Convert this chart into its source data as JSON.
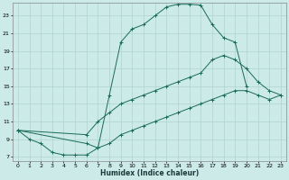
{
  "xlabel": "Humidex (Indice chaleur)",
  "bg_color": "#cceae8",
  "grid_color": "#b0d4d0",
  "line_color": "#1a6b5a",
  "xlim": [
    -0.5,
    23.5
  ],
  "ylim": [
    6.5,
    24.5
  ],
  "xticks": [
    0,
    1,
    2,
    3,
    4,
    5,
    6,
    7,
    8,
    9,
    10,
    11,
    12,
    13,
    14,
    15,
    16,
    17,
    18,
    19,
    20,
    21,
    22,
    23
  ],
  "yticks": [
    7,
    9,
    11,
    13,
    15,
    17,
    19,
    21,
    23
  ],
  "line1_x": [
    0,
    1,
    2,
    3,
    4,
    5,
    6,
    7,
    8,
    9,
    10,
    11,
    12,
    13,
    14,
    15,
    16,
    17,
    18,
    19,
    20
  ],
  "line1_y": [
    10,
    9,
    8.5,
    7.5,
    7.2,
    7.2,
    7.2,
    8,
    14,
    20,
    21.5,
    22,
    23,
    24,
    24.3,
    24.3,
    24.2,
    22,
    20.5,
    20,
    15
  ],
  "line2_x": [
    0,
    6,
    7,
    8,
    9,
    10,
    11,
    12,
    13,
    14,
    15,
    16,
    17,
    18,
    19,
    20,
    21,
    22,
    23
  ],
  "line2_y": [
    10,
    9.5,
    11,
    12,
    13,
    13.5,
    14,
    14.5,
    15,
    15.5,
    16,
    16.5,
    18,
    18.5,
    18,
    17,
    15.5,
    14.5,
    14
  ],
  "line3_x": [
    0,
    6,
    7,
    8,
    9,
    10,
    11,
    12,
    13,
    14,
    15,
    16,
    17,
    18,
    19,
    20,
    21,
    22,
    23
  ],
  "line3_y": [
    10,
    8.5,
    8,
    8.5,
    9.5,
    10,
    10.5,
    11,
    11.5,
    12,
    12.5,
    13,
    13.5,
    14,
    14.5,
    14.5,
    14,
    13.5,
    14
  ]
}
